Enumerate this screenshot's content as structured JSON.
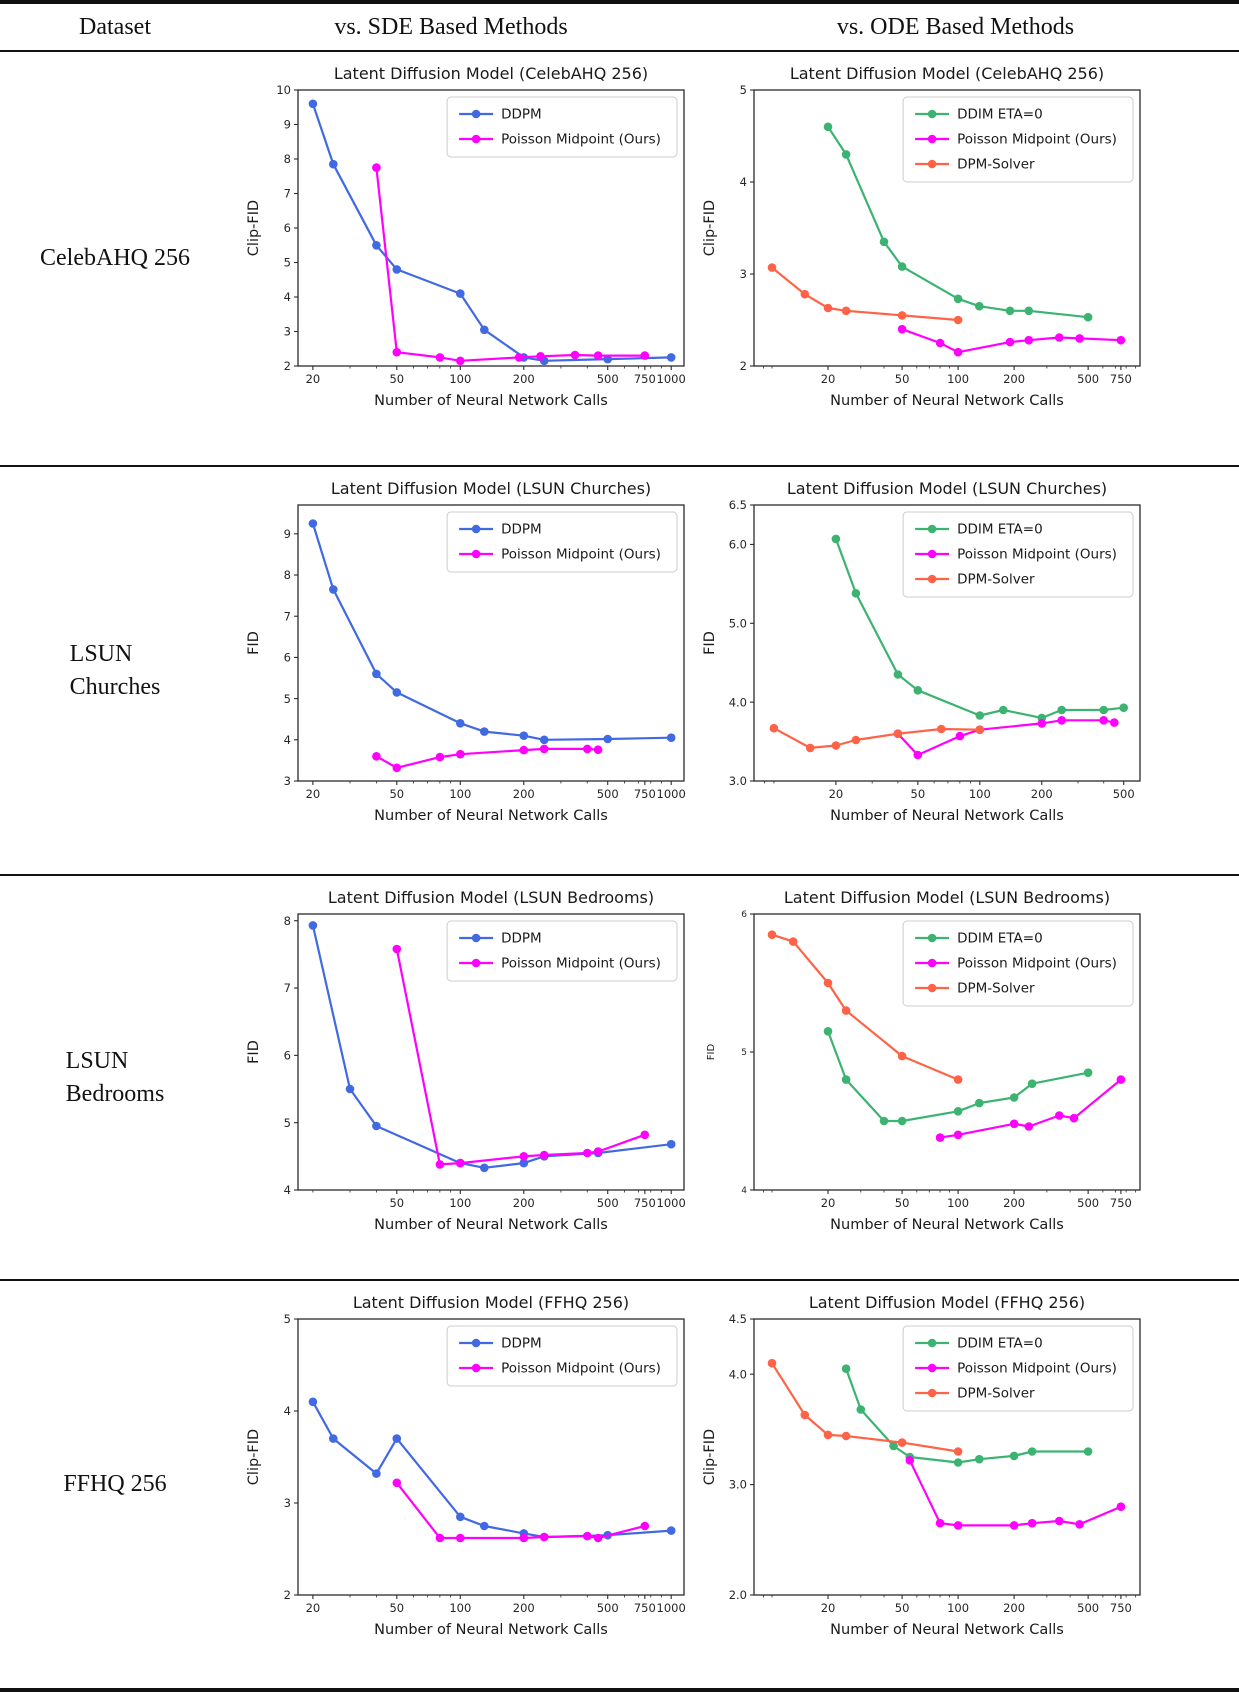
{
  "table": {
    "header": {
      "dataset": "Dataset",
      "sde": "vs. SDE Based Methods",
      "ode": "vs. ODE Based Methods"
    },
    "rows": [
      {
        "dataset": "CelebAHQ 256"
      },
      {
        "dataset": "LSUN\nChurches"
      },
      {
        "dataset": "LSUN\nBedrooms"
      },
      {
        "dataset": "FFHQ 256"
      }
    ]
  },
  "colors": {
    "ddpm": "#4169E1",
    "poisson_midpoint": "#FF00FF",
    "ddim": "#3CB371",
    "dpm_solver": "#FF6347"
  },
  "chart_data": [
    {
      "id": "celebahq-sde",
      "type": "line",
      "title": "Latent Diffusion Model (CelebAHQ 256)",
      "xlabel": "Number of Neural Network Calls",
      "ylabel": "Clip-FID",
      "xscale": "log",
      "xlim": [
        17,
        1150
      ],
      "ylim": [
        2,
        10
      ],
      "xticks": [
        20,
        50,
        100,
        200,
        500,
        750,
        1000
      ],
      "yticks": [
        "2",
        "3",
        "4",
        "5",
        "6",
        "7",
        "8",
        "9",
        "10"
      ],
      "legend_position": "upper right",
      "grid": false,
      "series": [
        {
          "name": "DDPM",
          "color": "#4169E1",
          "points": [
            [
              20,
              9.6
            ],
            [
              25,
              7.85
            ],
            [
              40,
              5.5
            ],
            [
              50,
              4.8
            ],
            [
              100,
              4.1
            ],
            [
              130,
              3.05
            ],
            [
              200,
              2.25
            ],
            [
              250,
              2.15
            ],
            [
              500,
              2.2
            ],
            [
              1000,
              2.25
            ]
          ]
        },
        {
          "name": "Poisson Midpoint (Ours)",
          "color": "#FF00FF",
          "points": [
            [
              40,
              7.75
            ],
            [
              50,
              2.4
            ],
            [
              80,
              2.25
            ],
            [
              100,
              2.15
            ],
            [
              190,
              2.25
            ],
            [
              240,
              2.28
            ],
            [
              350,
              2.32
            ],
            [
              450,
              2.3
            ],
            [
              750,
              2.3
            ]
          ]
        }
      ]
    },
    {
      "id": "celebahq-ode",
      "type": "line",
      "title": "Latent Diffusion Model (CelebAHQ 256)",
      "xlabel": "Number of Neural Network Calls",
      "ylabel": "Clip-FID",
      "xscale": "log",
      "xlim": [
        8,
        950
      ],
      "ylim": [
        2,
        5
      ],
      "xticks": [
        20,
        50,
        100,
        200,
        500,
        750
      ],
      "yticks": [
        "2",
        "3",
        "4",
        "5"
      ],
      "legend_position": "upper right",
      "grid": false,
      "series": [
        {
          "name": "DDIM ETA=0",
          "color": "#3CB371",
          "points": [
            [
              20,
              4.6
            ],
            [
              25,
              4.3
            ],
            [
              40,
              3.35
            ],
            [
              50,
              3.08
            ],
            [
              100,
              2.73
            ],
            [
              130,
              2.65
            ],
            [
              190,
              2.6
            ],
            [
              240,
              2.6
            ],
            [
              500,
              2.53
            ]
          ]
        },
        {
          "name": "Poisson Midpoint (Ours)",
          "color": "#FF00FF",
          "points": [
            [
              50,
              2.4
            ],
            [
              80,
              2.25
            ],
            [
              100,
              2.15
            ],
            [
              190,
              2.26
            ],
            [
              240,
              2.28
            ],
            [
              350,
              2.31
            ],
            [
              450,
              2.3
            ],
            [
              750,
              2.28
            ]
          ]
        },
        {
          "name": "DPM-Solver",
          "color": "#FF6347",
          "points": [
            [
              10,
              3.07
            ],
            [
              15,
              2.78
            ],
            [
              20,
              2.63
            ],
            [
              25,
              2.6
            ],
            [
              50,
              2.55
            ],
            [
              100,
              2.5
            ]
          ]
        }
      ]
    },
    {
      "id": "churches-sde",
      "type": "line",
      "title": "Latent Diffusion Model (LSUN Churches)",
      "xlabel": "Number of Neural Network Calls",
      "ylabel": "FID",
      "xscale": "log",
      "xlim": [
        17,
        1150
      ],
      "ylim": [
        3,
        9.7
      ],
      "xticks": [
        20,
        50,
        100,
        200,
        500,
        750,
        1000
      ],
      "yticks": [
        "3",
        "4",
        "5",
        "6",
        "7",
        "8",
        "9"
      ],
      "legend_position": "upper right",
      "grid": false,
      "series": [
        {
          "name": "DDPM",
          "color": "#4169E1",
          "points": [
            [
              20,
              9.25
            ],
            [
              25,
              7.65
            ],
            [
              40,
              5.6
            ],
            [
              50,
              5.15
            ],
            [
              100,
              4.4
            ],
            [
              130,
              4.2
            ],
            [
              200,
              4.1
            ],
            [
              250,
              4.0
            ],
            [
              500,
              4.02
            ],
            [
              1000,
              4.05
            ]
          ]
        },
        {
          "name": "Poisson Midpoint (Ours)",
          "color": "#FF00FF",
          "points": [
            [
              40,
              3.6
            ],
            [
              50,
              3.32
            ],
            [
              80,
              3.58
            ],
            [
              100,
              3.65
            ],
            [
              200,
              3.75
            ],
            [
              250,
              3.78
            ],
            [
              400,
              3.78
            ],
            [
              450,
              3.76
            ]
          ]
        }
      ]
    },
    {
      "id": "churches-ode",
      "type": "line",
      "title": "Latent Diffusion Model (LSUN Churches)",
      "xlabel": "Number of Neural Network Calls",
      "ylabel": "FID",
      "xscale": "log",
      "xlim": [
        8,
        600
      ],
      "ylim": [
        3.0,
        6.5
      ],
      "xticks": [
        20,
        50,
        100,
        200,
        500
      ],
      "yticks": [
        "3.0",
        "4.0",
        "5.0",
        "6.0",
        "6.5"
      ],
      "legend_position": "upper right",
      "grid": false,
      "series": [
        {
          "name": "DDIM ETA=0",
          "color": "#3CB371",
          "points": [
            [
              20,
              6.07
            ],
            [
              25,
              5.38
            ],
            [
              40,
              4.35
            ],
            [
              50,
              4.15
            ],
            [
              100,
              3.83
            ],
            [
              130,
              3.9
            ],
            [
              200,
              3.8
            ],
            [
              250,
              3.9
            ],
            [
              400,
              3.9
            ],
            [
              500,
              3.93
            ]
          ]
        },
        {
          "name": "Poisson Midpoint (Ours)",
          "color": "#FF00FF",
          "points": [
            [
              40,
              3.6
            ],
            [
              50,
              3.33
            ],
            [
              80,
              3.57
            ],
            [
              100,
              3.65
            ],
            [
              200,
              3.73
            ],
            [
              250,
              3.77
            ],
            [
              400,
              3.77
            ],
            [
              450,
              3.74
            ]
          ]
        },
        {
          "name": "DPM-Solver",
          "color": "#FF6347",
          "points": [
            [
              10,
              3.67
            ],
            [
              15,
              3.42
            ],
            [
              20,
              3.45
            ],
            [
              25,
              3.52
            ],
            [
              40,
              3.6
            ],
            [
              65,
              3.66
            ],
            [
              100,
              3.65
            ]
          ]
        }
      ]
    },
    {
      "id": "bedrooms-sde",
      "type": "line",
      "title": "Latent Diffusion Model (LSUN Bedrooms)",
      "xlabel": "Number of Neural Network Calls",
      "ylabel": "FID",
      "xscale": "log",
      "xlim": [
        17,
        1150
      ],
      "ylim": [
        4,
        8.1
      ],
      "xticks": [
        50,
        100,
        200,
        500,
        750,
        1000
      ],
      "yticks": [
        "4",
        "5",
        "6",
        "7",
        "8"
      ],
      "legend_position": "upper right",
      "grid": false,
      "series": [
        {
          "name": "DDPM",
          "color": "#4169E1",
          "points": [
            [
              20,
              7.93
            ],
            [
              30,
              5.5
            ],
            [
              40,
              4.95
            ],
            [
              100,
              4.4
            ],
            [
              130,
              4.33
            ],
            [
              200,
              4.4
            ],
            [
              250,
              4.5
            ],
            [
              450,
              4.55
            ],
            [
              1000,
              4.68
            ]
          ]
        },
        {
          "name": "Poisson Midpoint (Ours)",
          "color": "#FF00FF",
          "points": [
            [
              50,
              7.58
            ],
            [
              80,
              4.38
            ],
            [
              100,
              4.4
            ],
            [
              200,
              4.5
            ],
            [
              250,
              4.52
            ],
            [
              400,
              4.55
            ],
            [
              450,
              4.57
            ],
            [
              750,
              4.82
            ]
          ]
        }
      ]
    },
    {
      "id": "bedrooms-ode",
      "type": "line",
      "title": "Latent Diffusion Model (LSUN Bedrooms)",
      "xlabel": "Number of Neural Network Calls",
      "ylabel": "FID",
      "ylabel_size": 10,
      "ytick_size": 9,
      "xscale": "log",
      "xlim": [
        8,
        950
      ],
      "ylim": [
        4,
        6
      ],
      "xticks": [
        20,
        50,
        100,
        200,
        500,
        750
      ],
      "yticks": [
        "4",
        "5",
        "6"
      ],
      "legend_position": "upper right",
      "grid": false,
      "series": [
        {
          "name": "DDIM ETA=0",
          "color": "#3CB371",
          "points": [
            [
              20,
              5.15
            ],
            [
              25,
              4.8
            ],
            [
              40,
              4.5
            ],
            [
              50,
              4.5
            ],
            [
              100,
              4.57
            ],
            [
              130,
              4.63
            ],
            [
              200,
              4.67
            ],
            [
              250,
              4.77
            ],
            [
              500,
              4.85
            ]
          ]
        },
        {
          "name": "Poisson Midpoint (Ours)",
          "color": "#FF00FF",
          "points": [
            [
              80,
              4.38
            ],
            [
              100,
              4.4
            ],
            [
              200,
              4.48
            ],
            [
              240,
              4.46
            ],
            [
              350,
              4.54
            ],
            [
              420,
              4.52
            ],
            [
              750,
              4.8
            ]
          ]
        },
        {
          "name": "DPM-Solver",
          "color": "#FF6347",
          "points": [
            [
              10,
              5.85
            ],
            [
              13,
              5.8
            ],
            [
              20,
              5.5
            ],
            [
              25,
              5.3
            ],
            [
              50,
              4.97
            ],
            [
              100,
              4.8
            ]
          ]
        }
      ]
    },
    {
      "id": "ffhq-sde",
      "type": "line",
      "title": "Latent Diffusion Model (FFHQ 256)",
      "xlabel": "Number of Neural Network Calls",
      "ylabel": "Clip-FID",
      "xscale": "log",
      "xlim": [
        17,
        1150
      ],
      "ylim": [
        2,
        5
      ],
      "xticks": [
        20,
        50,
        100,
        200,
        500,
        750,
        1000
      ],
      "yticks": [
        "2",
        "3",
        "4",
        "5"
      ],
      "legend_position": "upper right",
      "grid": false,
      "series": [
        {
          "name": "DDPM",
          "color": "#4169E1",
          "points": [
            [
              20,
              4.1
            ],
            [
              25,
              3.7
            ],
            [
              40,
              3.32
            ],
            [
              50,
              3.7
            ],
            [
              100,
              2.85
            ],
            [
              130,
              2.75
            ],
            [
              200,
              2.67
            ],
            [
              250,
              2.63
            ],
            [
              500,
              2.65
            ],
            [
              1000,
              2.7
            ]
          ]
        },
        {
          "name": "Poisson Midpoint (Ours)",
          "color": "#FF00FF",
          "points": [
            [
              50,
              3.22
            ],
            [
              80,
              2.62
            ],
            [
              100,
              2.62
            ],
            [
              200,
              2.62
            ],
            [
              250,
              2.63
            ],
            [
              400,
              2.64
            ],
            [
              450,
              2.62
            ],
            [
              750,
              2.75
            ]
          ]
        }
      ]
    },
    {
      "id": "ffhq-ode",
      "type": "line",
      "title": "Latent Diffusion Model (FFHQ 256)",
      "xlabel": "Number of Neural Network Calls",
      "ylabel": "Clip-FID",
      "xscale": "log",
      "xlim": [
        8,
        950
      ],
      "ylim": [
        2.0,
        4.5
      ],
      "xticks": [
        20,
        50,
        100,
        200,
        500,
        750
      ],
      "yticks": [
        "2.0",
        "3.0",
        "4.0",
        "4.5"
      ],
      "legend_position": "upper right",
      "grid": false,
      "series": [
        {
          "name": "DDIM ETA=0",
          "color": "#3CB371",
          "points": [
            [
              25,
              4.05
            ],
            [
              30,
              3.68
            ],
            [
              45,
              3.35
            ],
            [
              55,
              3.25
            ],
            [
              100,
              3.2
            ],
            [
              130,
              3.23
            ],
            [
              200,
              3.26
            ],
            [
              250,
              3.3
            ],
            [
              500,
              3.3
            ]
          ]
        },
        {
          "name": "Poisson Midpoint (Ours)",
          "color": "#FF00FF",
          "points": [
            [
              55,
              3.22
            ],
            [
              80,
              2.65
            ],
            [
              100,
              2.63
            ],
            [
              200,
              2.63
            ],
            [
              250,
              2.65
            ],
            [
              350,
              2.67
            ],
            [
              450,
              2.64
            ],
            [
              750,
              2.8
            ]
          ]
        },
        {
          "name": "DPM-Solver",
          "color": "#FF6347",
          "points": [
            [
              10,
              4.1
            ],
            [
              15,
              3.63
            ],
            [
              20,
              3.45
            ],
            [
              25,
              3.44
            ],
            [
              50,
              3.38
            ],
            [
              100,
              3.3
            ]
          ]
        }
      ]
    }
  ]
}
